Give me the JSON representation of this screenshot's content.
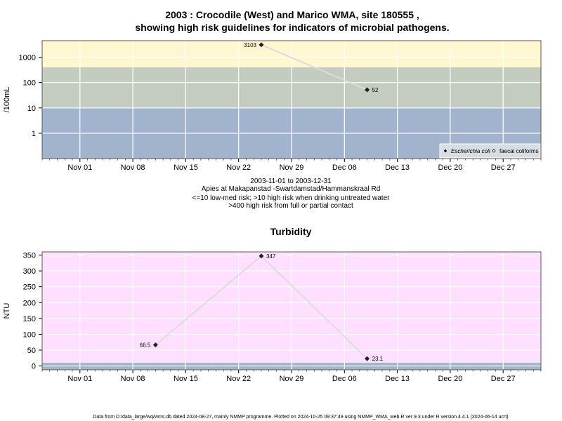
{
  "page": {
    "title_line1": "2003 : Crocodile (West) and Marico WMA, site 180555 ,",
    "title_line2": "showing high risk guidelines for indicators of microbial pathogens.",
    "caption_line1": "2003-11-01 to 2003-12-31",
    "caption_line2": "Apies at Makapanstad -Swartdamstad/Hammanskraal Rd",
    "caption_line3": "<=10 low-med risk; >10 high risk when drinking untreated water",
    "caption_line4": ">400 high risk from full or partial contact",
    "footer": "Data from D:/data_large/wq/wms.db dated 2024-08-27, mainly NMMP programme. Plotted on 2024-10-25 09:37:49 using NMMP_WMA_web.R ver 9.3 under R version 4.4.1 (2024-06-14 ucrt)"
  },
  "colors": {
    "band_high": "#fff7d0",
    "band_mid": "#c4ccc0",
    "band_low": "#a2b4cd",
    "turbidity_bg": "#ffdfff",
    "turbidity_base": "#a2b4cd",
    "grid": "#ffffff",
    "series_line": "#dcdcdc",
    "marker": "#222222"
  },
  "chart_data": [
    {
      "type": "line",
      "title": "",
      "xlabel": "",
      "ylabel": "/100mL",
      "y_scale": "log",
      "ylim": [
        0.1,
        4500
      ],
      "xlim": [
        "2003-10-27",
        "2004-01-01"
      ],
      "x_tick_labels": [
        "Nov 01",
        "Nov 08",
        "Nov 15",
        "Nov 22",
        "Nov 29",
        "Dec 06",
        "Dec 13",
        "Dec 20",
        "Dec 27"
      ],
      "y_tick_labels": [
        "1",
        "10",
        "100",
        "1000"
      ],
      "y_ticks": [
        1,
        10,
        100,
        1000
      ],
      "risk_bands": [
        {
          "from": 0.1,
          "to": 10,
          "color_key": "band_low"
        },
        {
          "from": 10,
          "to": 400,
          "color_key": "band_mid"
        },
        {
          "from": 400,
          "to": 4500,
          "color_key": "band_high"
        }
      ],
      "legend": {
        "position": "bottom-right",
        "entries": [
          {
            "label": "Escherichia coli",
            "marker": "filled-diamond"
          },
          {
            "label": "faecal coliforms",
            "marker": "open-diamond"
          }
        ]
      },
      "series": [
        {
          "name": "Escherichia coli",
          "x": [
            "2003-11-25",
            "2003-12-09"
          ],
          "y": [
            3103,
            52
          ],
          "labels": [
            "3103",
            "52"
          ]
        }
      ]
    },
    {
      "type": "line",
      "title": "Turbidity",
      "xlabel": "",
      "ylabel": "NTU",
      "y_scale": "linear",
      "ylim": [
        -12,
        360
      ],
      "xlim": [
        "2003-10-27",
        "2004-01-01"
      ],
      "x_tick_labels": [
        "Nov 01",
        "Nov 08",
        "Nov 15",
        "Nov 22",
        "Nov 29",
        "Dec 06",
        "Dec 13",
        "Dec 20",
        "Dec 27"
      ],
      "y_tick_labels": [
        "0",
        "50",
        "100",
        "150",
        "200",
        "250",
        "300",
        "350"
      ],
      "y_ticks": [
        0,
        50,
        100,
        150,
        200,
        250,
        300,
        350
      ],
      "base_band": {
        "from": -12,
        "to": 10,
        "color_key": "turbidity_base"
      },
      "series": [
        {
          "name": "",
          "x": [
            "2003-11-11",
            "2003-11-25",
            "2003-12-09"
          ],
          "y": [
            66.5,
            347,
            23.1
          ],
          "labels": [
            "66.5",
            "347",
            "23.1"
          ]
        }
      ]
    }
  ]
}
